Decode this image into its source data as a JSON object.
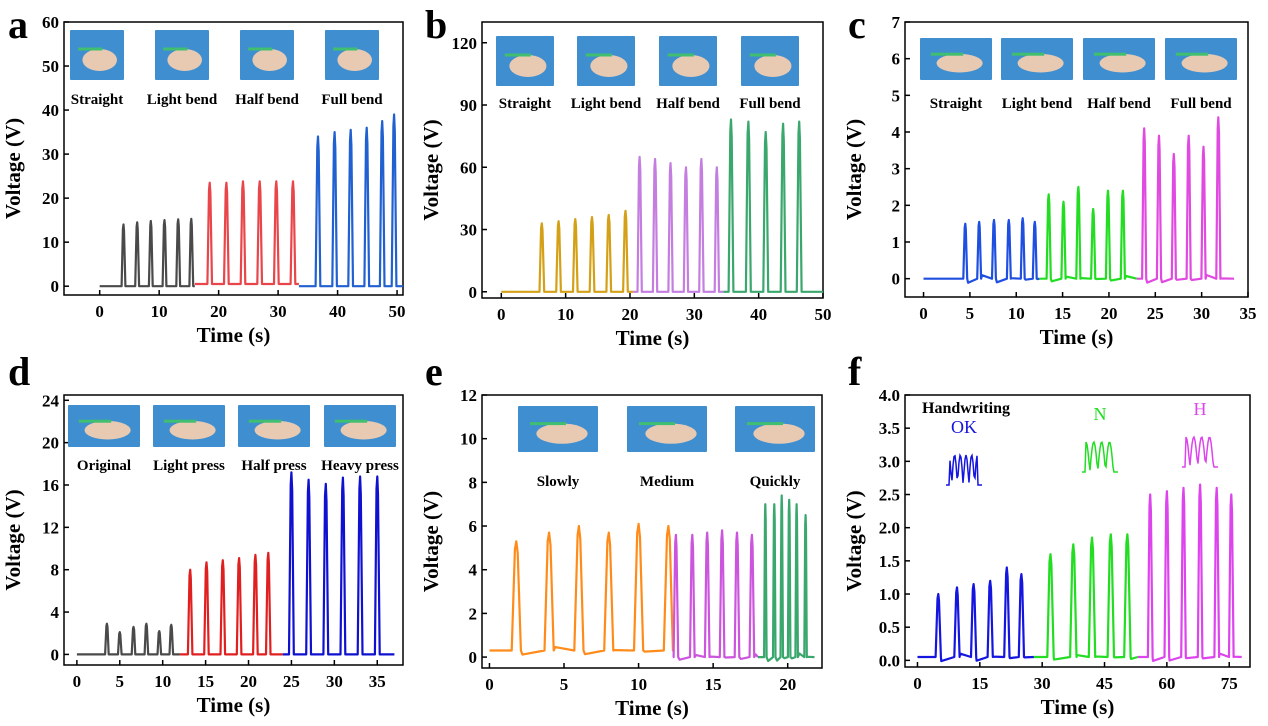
{
  "chart_data": [
    {
      "type": "line",
      "panel_letter": "a",
      "xlabel": "Time (s)",
      "ylabel": "Voltage (V)",
      "xlim": [
        -6,
        51
      ],
      "ylim": [
        -2,
        60
      ],
      "xticks": [
        0,
        10,
        20,
        30,
        40,
        50
      ],
      "yticks": [
        0,
        10,
        20,
        30,
        40,
        50,
        60
      ],
      "image_labels": [
        "Straight",
        "Light bend",
        "Half bend",
        "Full bend"
      ],
      "series": [
        {
          "color": "#4a4a4a",
          "t_start": 0,
          "t_end": 16,
          "baseline": 0,
          "peaks": [
            {
              "t": 4,
              "v": 14
            },
            {
              "t": 6.3,
              "v": 14.5
            },
            {
              "t": 8.6,
              "v": 14.8
            },
            {
              "t": 10.9,
              "v": 15
            },
            {
              "t": 13.2,
              "v": 15.2
            },
            {
              "t": 15.4,
              "v": 15.3
            }
          ]
        },
        {
          "color": "#e8464a",
          "t_start": 16,
          "t_end": 33.5,
          "baseline": 0.5,
          "peaks": [
            {
              "t": 18.5,
              "v": 23.5
            },
            {
              "t": 21.3,
              "v": 23.5
            },
            {
              "t": 24.1,
              "v": 23.8
            },
            {
              "t": 26.9,
              "v": 23.8
            },
            {
              "t": 29.7,
              "v": 23.8
            },
            {
              "t": 32.5,
              "v": 23.8
            }
          ]
        },
        {
          "color": "#2060d0",
          "t_start": 33.5,
          "t_end": 51,
          "baseline": 0,
          "peaks": [
            {
              "t": 36.7,
              "v": 34
            },
            {
              "t": 39.5,
              "v": 35
            },
            {
              "t": 42.2,
              "v": 35.5
            },
            {
              "t": 44.9,
              "v": 36
            },
            {
              "t": 47.5,
              "v": 37.5
            },
            {
              "t": 49.5,
              "v": 39
            }
          ]
        }
      ]
    },
    {
      "type": "line",
      "panel_letter": "b",
      "xlabel": "Time (s)",
      "ylabel": "Voltage (V)",
      "xlim": [
        -3,
        50
      ],
      "ylim": [
        -3,
        130
      ],
      "xticks": [
        0,
        10,
        20,
        30,
        40,
        50
      ],
      "yticks": [
        0,
        30,
        60,
        90,
        120
      ],
      "image_labels": [
        "Straight",
        "Light bend",
        "Half bend",
        "Full bend"
      ],
      "series": [
        {
          "color": "#d4a017",
          "t_start": 0,
          "t_end": 20.5,
          "baseline": 0,
          "peaks": [
            {
              "t": 6.3,
              "v": 33
            },
            {
              "t": 8.9,
              "v": 34
            },
            {
              "t": 11.5,
              "v": 35
            },
            {
              "t": 14.1,
              "v": 36
            },
            {
              "t": 16.7,
              "v": 37
            },
            {
              "t": 19.3,
              "v": 39
            }
          ]
        },
        {
          "color": "#c47ee0",
          "t_start": 20.5,
          "t_end": 34.5,
          "baseline": 0,
          "peaks": [
            {
              "t": 21.5,
              "v": 65
            },
            {
              "t": 23.9,
              "v": 64
            },
            {
              "t": 26.3,
              "v": 62
            },
            {
              "t": 28.7,
              "v": 60
            },
            {
              "t": 31.1,
              "v": 64
            },
            {
              "t": 33.5,
              "v": 60
            }
          ]
        },
        {
          "color": "#3aa76d",
          "t_start": 34.5,
          "t_end": 50,
          "baseline": 0,
          "peaks": [
            {
              "t": 35.7,
              "v": 83
            },
            {
              "t": 38.4,
              "v": 82
            },
            {
              "t": 41.1,
              "v": 77
            },
            {
              "t": 43.8,
              "v": 81
            },
            {
              "t": 46.3,
              "v": 82
            }
          ]
        }
      ]
    },
    {
      "type": "line",
      "panel_letter": "c",
      "xlabel": "Time (s)",
      "ylabel": "Voltage (V)",
      "xlim": [
        -2,
        35
      ],
      "ylim": [
        -0.5,
        7
      ],
      "xticks": [
        0,
        5,
        10,
        15,
        20,
        25,
        30,
        35
      ],
      "yticks": [
        0,
        1,
        2,
        3,
        4,
        5,
        6,
        7
      ],
      "image_labels": [
        "Straight",
        "Light bend",
        "Half bend",
        "Full bend"
      ],
      "series": [
        {
          "color": "#1f4fe0",
          "t_start": 0,
          "t_end": 12.5,
          "baseline": 0,
          "peaks": [
            {
              "t": 4.5,
              "v": 1.5
            },
            {
              "t": 6,
              "v": 1.55
            },
            {
              "t": 7.6,
              "v": 1.6
            },
            {
              "t": 9.2,
              "v": 1.6
            },
            {
              "t": 10.7,
              "v": 1.65
            },
            {
              "t": 12,
              "v": 1.55
            }
          ]
        },
        {
          "color": "#22dd22",
          "t_start": 12.5,
          "t_end": 23,
          "baseline": 0,
          "peaks": [
            {
              "t": 13.5,
              "v": 2.3
            },
            {
              "t": 15.1,
              "v": 2.1
            },
            {
              "t": 16.7,
              "v": 2.5
            },
            {
              "t": 18.3,
              "v": 1.9
            },
            {
              "t": 19.9,
              "v": 2.4
            },
            {
              "t": 21.5,
              "v": 2.4
            }
          ]
        },
        {
          "color": "#e04ae0",
          "t_start": 23,
          "t_end": 33.5,
          "baseline": 0,
          "peaks": [
            {
              "t": 23.8,
              "v": 4.1
            },
            {
              "t": 25.4,
              "v": 3.9
            },
            {
              "t": 27,
              "v": 3.4
            },
            {
              "t": 28.6,
              "v": 3.9
            },
            {
              "t": 30.2,
              "v": 3.6
            },
            {
              "t": 31.8,
              "v": 4.4
            }
          ]
        }
      ]
    },
    {
      "type": "line",
      "panel_letter": "d",
      "xlabel": "Time (s)",
      "ylabel": "Voltage (V)",
      "xlim": [
        -1.5,
        38
      ],
      "ylim": [
        -1,
        24.5
      ],
      "xticks": [
        0,
        5,
        10,
        15,
        20,
        25,
        30,
        35
      ],
      "yticks": [
        0,
        4,
        8,
        12,
        16,
        20,
        24
      ],
      "image_labels": [
        "Original",
        "Light press",
        "Half press",
        "Heavy press"
      ],
      "series": [
        {
          "color": "#4a4a4a",
          "t_start": 0,
          "t_end": 12,
          "baseline": 0,
          "peaks": [
            {
              "t": 3.5,
              "v": 2.9
            },
            {
              "t": 5,
              "v": 2.1
            },
            {
              "t": 6.6,
              "v": 2.6
            },
            {
              "t": 8.1,
              "v": 2.9
            },
            {
              "t": 9.6,
              "v": 2.2
            },
            {
              "t": 11,
              "v": 2.8
            }
          ]
        },
        {
          "color": "#e02020",
          "t_start": 12,
          "t_end": 24,
          "baseline": 0,
          "peaks": [
            {
              "t": 13.2,
              "v": 8
            },
            {
              "t": 15.1,
              "v": 8.7
            },
            {
              "t": 17,
              "v": 8.9
            },
            {
              "t": 18.9,
              "v": 9.1
            },
            {
              "t": 20.8,
              "v": 9.4
            },
            {
              "t": 22.3,
              "v": 9.6
            }
          ]
        },
        {
          "color": "#1010d0",
          "t_start": 24,
          "t_end": 37,
          "baseline": 0,
          "peaks": [
            {
              "t": 25,
              "v": 17.2
            },
            {
              "t": 27,
              "v": 16.5
            },
            {
              "t": 29,
              "v": 16.1
            },
            {
              "t": 31,
              "v": 16.7
            },
            {
              "t": 33,
              "v": 16.8
            },
            {
              "t": 35,
              "v": 16.8
            }
          ]
        }
      ]
    },
    {
      "type": "line",
      "panel_letter": "e",
      "xlabel": "Time (s)",
      "ylabel": "Voltage (V)",
      "xlim": [
        -0.5,
        22.3
      ],
      "ylim": [
        -0.5,
        12
      ],
      "xticks": [
        0,
        5,
        10,
        15,
        20
      ],
      "yticks": [
        0,
        2,
        4,
        6,
        8,
        10,
        12
      ],
      "image_labels": [
        "Slowly",
        "Medium",
        "Quickly"
      ],
      "series": [
        {
          "color": "#ff8c1a",
          "t_start": 0,
          "t_end": 12.3,
          "baseline": 0.3,
          "peaks": [
            {
              "t": 1.8,
              "v": 5.3
            },
            {
              "t": 4,
              "v": 5.7
            },
            {
              "t": 6,
              "v": 6
            },
            {
              "t": 8,
              "v": 5.7
            },
            {
              "t": 10,
              "v": 6.1
            },
            {
              "t": 12,
              "v": 6
            }
          ]
        },
        {
          "color": "#cc55dd",
          "t_start": 12.3,
          "t_end": 18,
          "baseline": 0,
          "peaks": [
            {
              "t": 12.5,
              "v": 5.6
            },
            {
              "t": 13.6,
              "v": 5.6
            },
            {
              "t": 14.6,
              "v": 5.7
            },
            {
              "t": 15.6,
              "v": 5.8
            },
            {
              "t": 16.6,
              "v": 5.7
            },
            {
              "t": 17.6,
              "v": 5.6
            }
          ]
        },
        {
          "color": "#3aa76d",
          "t_start": 18,
          "t_end": 21.8,
          "baseline": 0,
          "peaks": [
            {
              "t": 18.5,
              "v": 7
            },
            {
              "t": 19.1,
              "v": 7
            },
            {
              "t": 19.6,
              "v": 7.4
            },
            {
              "t": 20.1,
              "v": 7.2
            },
            {
              "t": 20.6,
              "v": 7
            },
            {
              "t": 21.2,
              "v": 6.5
            }
          ]
        }
      ]
    },
    {
      "type": "line",
      "panel_letter": "f",
      "xlabel": "Time (s)",
      "ylabel": "Voltage (V)",
      "xlim": [
        -3,
        80
      ],
      "ylim": [
        -0.1,
        4
      ],
      "xticks": [
        0,
        15,
        30,
        45,
        60,
        75
      ],
      "yticks": [
        0.0,
        0.5,
        1.0,
        1.5,
        2.0,
        2.5,
        3.0,
        3.5,
        4.0
      ],
      "annotation": "Handwriting",
      "insets": [
        "OK",
        "N",
        "H"
      ],
      "series": [
        {
          "color": "#1515e0",
          "t_start": 0,
          "t_end": 28,
          "baseline": 0.05,
          "peaks": [
            {
              "t": 5,
              "v": 1
            },
            {
              "t": 9.5,
              "v": 1.1
            },
            {
              "t": 13.5,
              "v": 1.15
            },
            {
              "t": 17.5,
              "v": 1.2
            },
            {
              "t": 21.5,
              "v": 1.4
            },
            {
              "t": 25,
              "v": 1.3
            }
          ]
        },
        {
          "color": "#22dd22",
          "t_start": 28,
          "t_end": 53,
          "baseline": 0.05,
          "peaks": [
            {
              "t": 32,
              "v": 1.6
            },
            {
              "t": 37.5,
              "v": 1.75
            },
            {
              "t": 42,
              "v": 1.85
            },
            {
              "t": 46.5,
              "v": 1.9
            },
            {
              "t": 50.5,
              "v": 1.9
            }
          ]
        },
        {
          "color": "#dd44ee",
          "t_start": 53,
          "t_end": 78,
          "baseline": 0.05,
          "peaks": [
            {
              "t": 56,
              "v": 2.5
            },
            {
              "t": 60,
              "v": 2.55
            },
            {
              "t": 64,
              "v": 2.6
            },
            {
              "t": 68,
              "v": 2.65
            },
            {
              "t": 72,
              "v": 2.6
            },
            {
              "t": 75.5,
              "v": 2.5
            }
          ]
        }
      ]
    }
  ]
}
